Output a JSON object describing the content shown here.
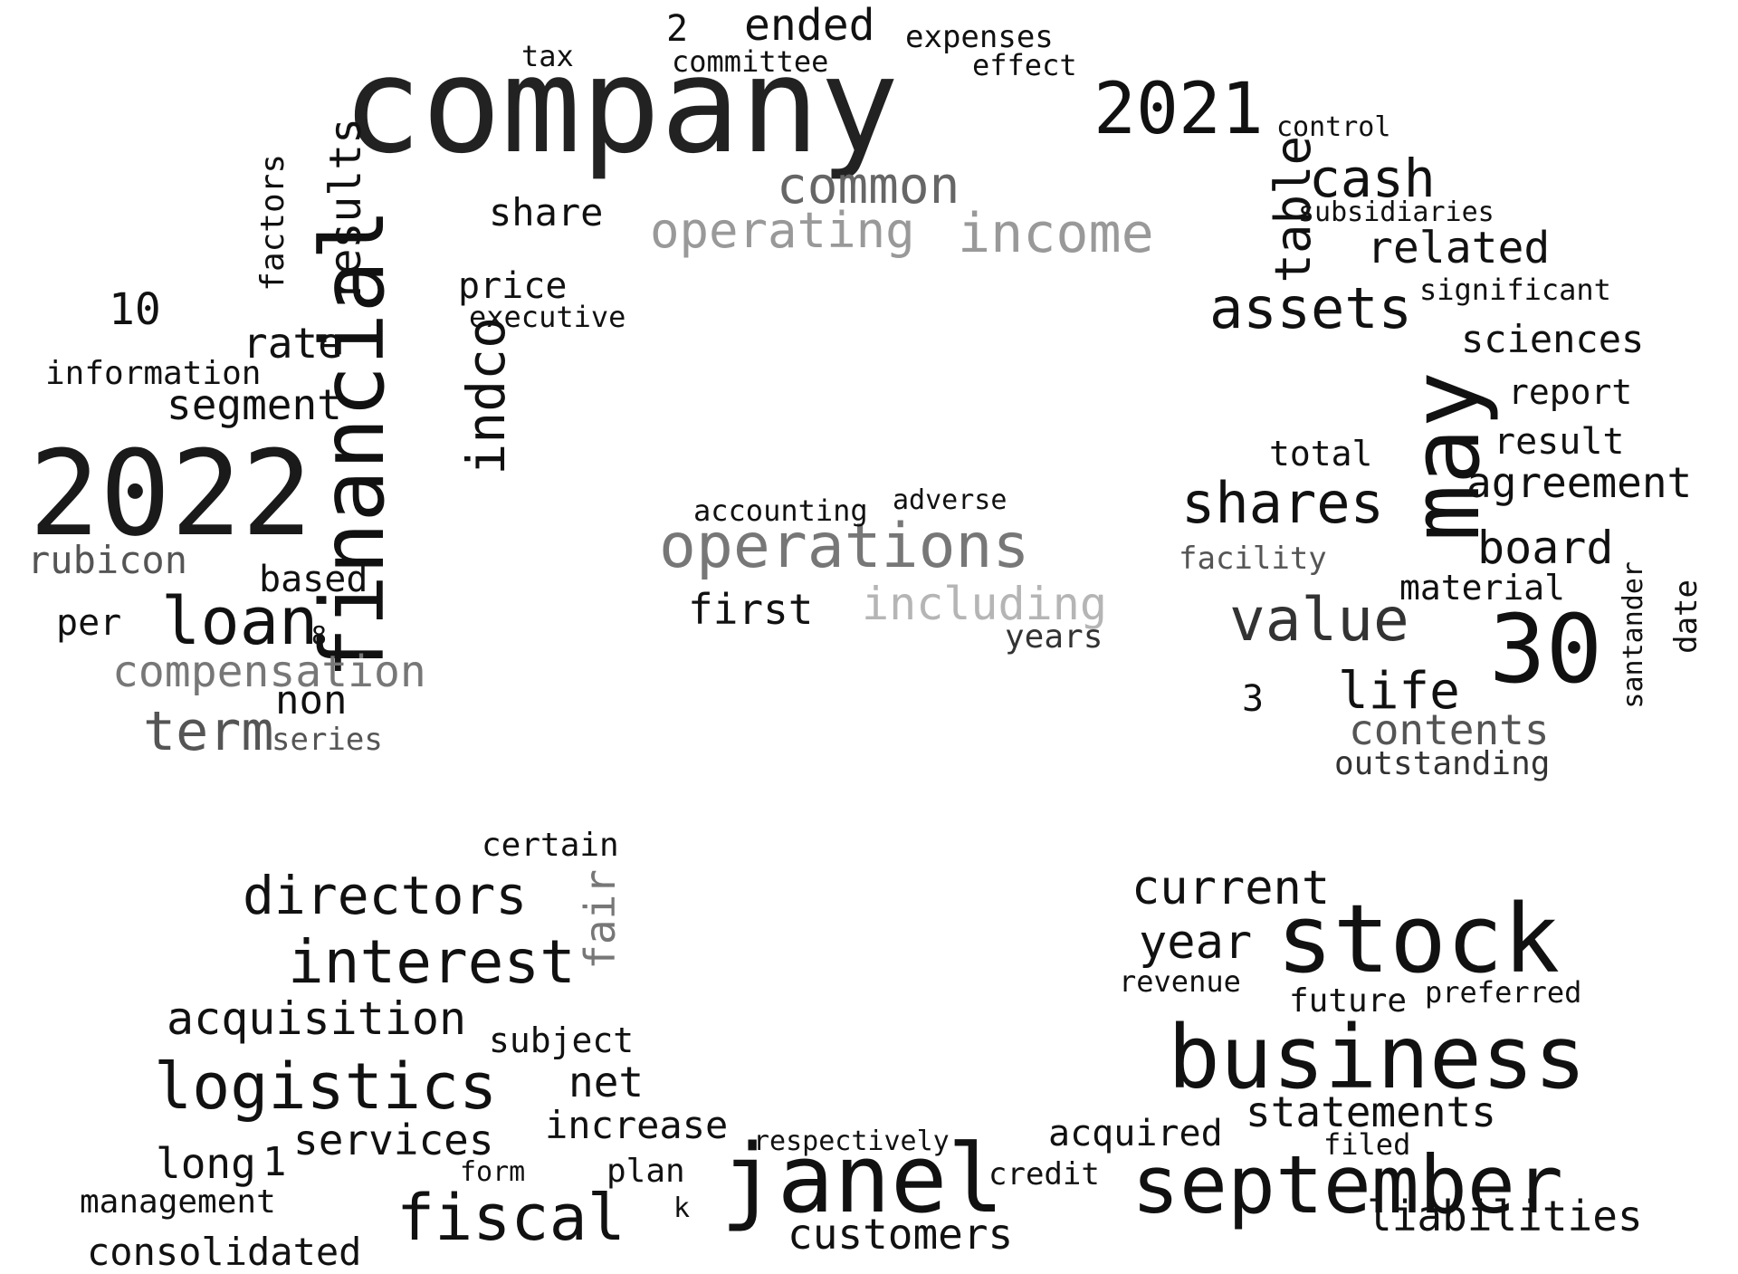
{
  "word_cloud": {
    "words": [
      {
        "text": "company",
        "shade": "#222222"
      },
      {
        "text": "2022",
        "shade": "#1a1a1a"
      },
      {
        "text": "financial",
        "shade": "#111111"
      },
      {
        "text": "stock",
        "shade": "#111111"
      },
      {
        "text": "business",
        "shade": "#111111"
      },
      {
        "text": "september",
        "shade": "#111111"
      },
      {
        "text": "janel",
        "shade": "#111111"
      },
      {
        "text": "may",
        "shade": "#111111"
      },
      {
        "text": "30",
        "shade": "#111111"
      },
      {
        "text": "2021",
        "shade": "#111111"
      },
      {
        "text": "operations",
        "shade": "#777777"
      },
      {
        "text": "value",
        "shade": "#333333"
      },
      {
        "text": "logistics",
        "shade": "#111111"
      },
      {
        "text": "interest",
        "shade": "#111111"
      },
      {
        "text": "fiscal",
        "shade": "#111111"
      },
      {
        "text": "loan",
        "shade": "#111111"
      },
      {
        "text": "common",
        "shade": "#666666"
      },
      {
        "text": "income",
        "shade": "#999999"
      },
      {
        "text": "operating",
        "shade": "#999999"
      },
      {
        "text": "including",
        "shade": "#b5b5b5"
      },
      {
        "text": "shares",
        "shade": "#111111"
      },
      {
        "text": "assets",
        "shade": "#111111"
      },
      {
        "text": "directors",
        "shade": "#111111"
      },
      {
        "text": "acquisition",
        "shade": "#111111"
      },
      {
        "text": "compensation",
        "shade": "#777777"
      },
      {
        "text": "term",
        "shade": "#555555"
      },
      {
        "text": "indco",
        "shade": "#111111"
      },
      {
        "text": "results",
        "shade": "#111111"
      },
      {
        "text": "cash",
        "shade": "#111111"
      },
      {
        "text": "table",
        "shade": "#111111"
      },
      {
        "text": "related",
        "shade": "#111111"
      },
      {
        "text": "ended",
        "shade": "#111111"
      },
      {
        "text": "agreement",
        "shade": "#111111"
      },
      {
        "text": "board",
        "shade": "#111111"
      },
      {
        "text": "life",
        "shade": "#111111"
      },
      {
        "text": "contents",
        "shade": "#555555"
      },
      {
        "text": "segment",
        "shade": "#111111"
      },
      {
        "text": "rubicon",
        "shade": "#555555"
      },
      {
        "text": "current",
        "shade": "#111111"
      },
      {
        "text": "year",
        "shade": "#111111"
      },
      {
        "text": "statements",
        "shade": "#111111"
      },
      {
        "text": "liabilities",
        "shade": "#111111"
      },
      {
        "text": "consolidated",
        "shade": "#111111"
      },
      {
        "text": "customers",
        "shade": "#111111"
      },
      {
        "text": "services",
        "shade": "#111111"
      },
      {
        "text": "net",
        "shade": "#111111"
      },
      {
        "text": "increase",
        "shade": "#111111"
      },
      {
        "text": "long",
        "shade": "#111111"
      },
      {
        "text": "management",
        "shade": "#111111"
      },
      {
        "text": "fair",
        "shade": "#777777"
      },
      {
        "text": "first",
        "shade": "#111111"
      },
      {
        "text": "accounting",
        "shade": "#111111"
      },
      {
        "text": "adverse",
        "shade": "#111111"
      },
      {
        "text": "years",
        "shade": "#333333"
      },
      {
        "text": "rate",
        "shade": "#111111"
      },
      {
        "text": "information",
        "shade": "#111111"
      },
      {
        "text": "factors",
        "shade": "#111111"
      },
      {
        "text": "price",
        "shade": "#111111"
      },
      {
        "text": "executive",
        "shade": "#111111"
      },
      {
        "text": "share",
        "shade": "#111111"
      },
      {
        "text": "tax",
        "shade": "#111111"
      },
      {
        "text": "committee",
        "shade": "#111111"
      },
      {
        "text": "expenses",
        "shade": "#111111"
      },
      {
        "text": "effect",
        "shade": "#111111"
      },
      {
        "text": "control",
        "shade": "#111111"
      },
      {
        "text": "subsidiaries",
        "shade": "#111111"
      },
      {
        "text": "significant",
        "shade": "#111111"
      },
      {
        "text": "sciences",
        "shade": "#111111"
      },
      {
        "text": "report",
        "shade": "#111111"
      },
      {
        "text": "result",
        "shade": "#111111"
      },
      {
        "text": "total",
        "shade": "#111111"
      },
      {
        "text": "facility",
        "shade": "#555555"
      },
      {
        "text": "material",
        "shade": "#111111"
      },
      {
        "text": "santander",
        "shade": "#111111"
      },
      {
        "text": "date",
        "shade": "#111111"
      },
      {
        "text": "outstanding",
        "shade": "#333333"
      },
      {
        "text": "revenue",
        "shade": "#111111"
      },
      {
        "text": "future",
        "shade": "#111111"
      },
      {
        "text": "preferred",
        "shade": "#111111"
      },
      {
        "text": "acquired",
        "shade": "#111111"
      },
      {
        "text": "filed",
        "shade": "#111111"
      },
      {
        "text": "credit",
        "shade": "#111111"
      },
      {
        "text": "respectively",
        "shade": "#111111"
      },
      {
        "text": "certain",
        "shade": "#111111"
      },
      {
        "text": "subject",
        "shade": "#111111"
      },
      {
        "text": "plan",
        "shade": "#111111"
      },
      {
        "text": "form",
        "shade": "#111111"
      },
      {
        "text": "non",
        "shade": "#111111"
      },
      {
        "text": "series",
        "shade": "#555555"
      },
      {
        "text": "based",
        "shade": "#111111"
      },
      {
        "text": "per",
        "shade": "#111111"
      },
      {
        "text": "10",
        "shade": "#111111"
      },
      {
        "text": "1",
        "shade": "#111111"
      },
      {
        "text": "2",
        "shade": "#111111"
      },
      {
        "text": "3",
        "shade": "#111111"
      },
      {
        "text": "8",
        "shade": "#111111"
      },
      {
        "text": "k",
        "shade": "#111111"
      }
    ]
  }
}
